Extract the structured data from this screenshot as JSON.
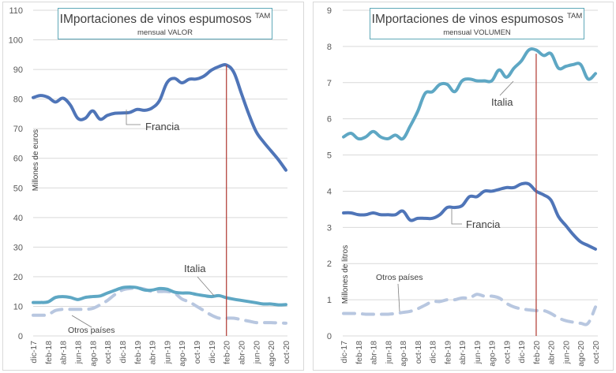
{
  "colors": {
    "francia": "#4f75b8",
    "italia": "#5ea7c4",
    "otros": "#b8c7e0",
    "marker_line": "#b5463f",
    "grid": "#d9d9d9",
    "title_border": "#5fa8b8"
  },
  "chart_data": [
    {
      "type": "line",
      "title": "IMportaciones de vinos espumosos",
      "title_superscript": "TAM",
      "subtitle": "mensual VALOR",
      "xlabel": "",
      "ylabel": "Millones de euros",
      "ylim": [
        0,
        110
      ],
      "yticks": [
        0,
        10,
        20,
        30,
        40,
        50,
        60,
        70,
        80,
        90,
        100,
        110
      ],
      "grid": true,
      "x": [
        "dic-17",
        "ene-18",
        "feb-18",
        "mar-18",
        "abr-18",
        "may-18",
        "jun-18",
        "jul-18",
        "ago-18",
        "sep-18",
        "oct-18",
        "nov-18",
        "dic-18",
        "ene-19",
        "feb-19",
        "mar-19",
        "abr-19",
        "may-19",
        "jun-19",
        "jul-19",
        "ago-19",
        "sep-19",
        "oct-19",
        "nov-19",
        "dic-19",
        "ene-20",
        "feb-20",
        "mar-20",
        "abr-20",
        "may-20",
        "jun-20",
        "jul-20",
        "ago-20",
        "sep-20",
        "oct-20"
      ],
      "xtick_labels": [
        "dic-17",
        "feb-18",
        "abr-18",
        "jun-18",
        "ago-18",
        "oct-18",
        "dic-18",
        "feb-19",
        "abr-19",
        "jun-19",
        "ago-19",
        "oct-19",
        "dic-19",
        "feb-20",
        "abr-20",
        "jun-20",
        "ago-20",
        "oct-20"
      ],
      "vertical_marker": "feb-20",
      "series": [
        {
          "name": "Francia",
          "style": "solid",
          "color_key": "francia",
          "values": [
            80.5,
            81.2,
            80.6,
            79.0,
            80.3,
            78.0,
            73.5,
            73.5,
            76.0,
            73.2,
            74.5,
            75.2,
            75.3,
            75.5,
            76.5,
            76.2,
            77.0,
            79.5,
            85.5,
            87.0,
            85.5,
            86.7,
            86.8,
            87.8,
            89.8,
            91.0,
            91.5,
            89.0,
            82.0,
            75.0,
            69.0,
            65.5,
            62.5,
            59.5,
            56.0
          ]
        },
        {
          "name": "Italia",
          "style": "solid",
          "color_key": "italia",
          "values": [
            11.3,
            11.3,
            11.5,
            13.0,
            13.3,
            13.0,
            12.3,
            13.0,
            13.3,
            13.5,
            14.5,
            15.4,
            16.3,
            16.5,
            16.3,
            15.5,
            15.5,
            16.0,
            15.8,
            14.8,
            14.5,
            14.5,
            14.0,
            13.6,
            13.3,
            13.6,
            12.9,
            12.4,
            12.0,
            11.6,
            11.2,
            10.8,
            10.8,
            10.5,
            10.6
          ]
        },
        {
          "name": "Otros países",
          "style": "dashed",
          "color_key": "otros",
          "values": [
            7.0,
            7.0,
            7.2,
            8.6,
            9.0,
            9.0,
            9.0,
            9.0,
            9.3,
            10.5,
            12.0,
            14.0,
            15.5,
            16.0,
            16.2,
            15.8,
            15.0,
            15.0,
            15.0,
            14.5,
            12.5,
            11.5,
            10.0,
            8.5,
            7.0,
            6.0,
            6.0,
            6.0,
            5.5,
            5.0,
            4.5,
            4.5,
            4.5,
            4.4,
            4.3
          ]
        }
      ],
      "annotations": [
        {
          "text": "Francia",
          "series": "Francia"
        },
        {
          "text": "Italia",
          "series": "Italia"
        },
        {
          "text": "Otros países",
          "series": "Otros países"
        }
      ]
    },
    {
      "type": "line",
      "title": "IMportaciones de vinos espumosos",
      "title_superscript": "TAM",
      "subtitle": "mensual VOLUMEN",
      "xlabel": "",
      "ylabel": "Millones de litros",
      "ylim": [
        0,
        9
      ],
      "yticks": [
        0,
        1,
        2,
        3,
        4,
        5,
        6,
        7,
        8,
        9
      ],
      "grid": true,
      "x": [
        "dic-17",
        "ene-18",
        "feb-18",
        "mar-18",
        "abr-18",
        "may-18",
        "jun-18",
        "jul-18",
        "ago-18",
        "sep-18",
        "oct-18",
        "nov-18",
        "dic-18",
        "ene-19",
        "feb-19",
        "mar-19",
        "abr-19",
        "may-19",
        "jun-19",
        "jul-19",
        "ago-19",
        "sep-19",
        "oct-19",
        "nov-19",
        "dic-19",
        "ene-20",
        "feb-20",
        "mar-20",
        "abr-20",
        "may-20",
        "jun-20",
        "jul-20",
        "ago-20",
        "sep-20",
        "oct-20"
      ],
      "xtick_labels": [
        "dic-17",
        "feb-18",
        "abr-18",
        "jun-18",
        "ago-18",
        "oct-18",
        "dic-18",
        "feb-19",
        "abr-19",
        "jun-19",
        "ago-19",
        "oct-19",
        "dic-19",
        "feb-20",
        "abr-20",
        "jun-20",
        "ago-20",
        "oct-20"
      ],
      "vertical_marker": "feb-20",
      "series": [
        {
          "name": "Italia",
          "style": "solid",
          "color_key": "italia",
          "values": [
            5.5,
            5.6,
            5.45,
            5.5,
            5.65,
            5.5,
            5.45,
            5.55,
            5.45,
            5.8,
            6.2,
            6.7,
            6.75,
            6.95,
            6.95,
            6.75,
            7.05,
            7.1,
            7.05,
            7.05,
            7.05,
            7.35,
            7.15,
            7.4,
            7.6,
            7.9,
            7.9,
            7.75,
            7.8,
            7.4,
            7.45,
            7.5,
            7.5,
            7.1,
            7.25
          ]
        },
        {
          "name": "Francia",
          "style": "solid",
          "color_key": "francia",
          "values": [
            3.4,
            3.4,
            3.35,
            3.35,
            3.4,
            3.35,
            3.35,
            3.35,
            3.45,
            3.2,
            3.25,
            3.25,
            3.25,
            3.35,
            3.55,
            3.55,
            3.6,
            3.85,
            3.85,
            4.0,
            4.0,
            4.05,
            4.1,
            4.1,
            4.2,
            4.2,
            4.0,
            3.9,
            3.75,
            3.3,
            3.05,
            2.8,
            2.6,
            2.5,
            2.4
          ]
        },
        {
          "name": "Otros países",
          "style": "dashed",
          "color_key": "otros",
          "values": [
            0.62,
            0.62,
            0.62,
            0.6,
            0.6,
            0.6,
            0.6,
            0.62,
            0.65,
            0.68,
            0.75,
            0.85,
            0.95,
            0.95,
            1.0,
            1.0,
            1.05,
            1.05,
            1.15,
            1.1,
            1.1,
            1.05,
            0.9,
            0.8,
            0.75,
            0.72,
            0.7,
            0.7,
            0.62,
            0.5,
            0.42,
            0.38,
            0.35,
            0.35,
            0.8
          ]
        }
      ],
      "annotations": [
        {
          "text": "Italia",
          "series": "Italia"
        },
        {
          "text": "Francia",
          "series": "Francia"
        },
        {
          "text": "Otros países",
          "series": "Otros países"
        }
      ]
    }
  ]
}
